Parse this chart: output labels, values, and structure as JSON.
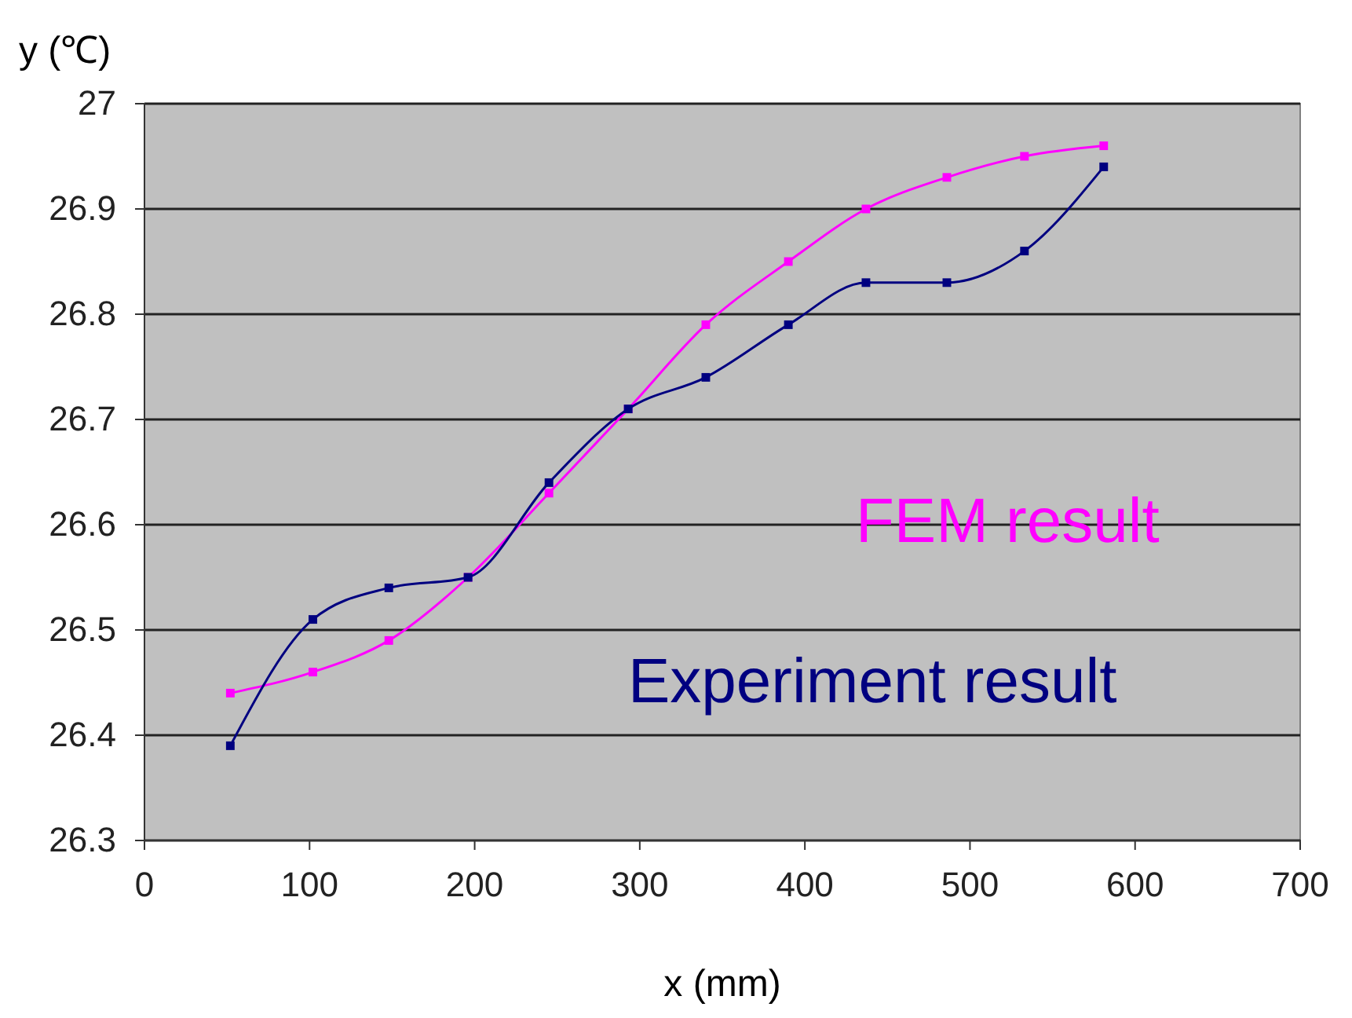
{
  "chart_data": {
    "type": "line",
    "xlabel": "x (mm)",
    "ylabel": "y (℃)",
    "xlim": [
      0,
      700
    ],
    "xticks": [
      0,
      100,
      200,
      300,
      400,
      500,
      600,
      700
    ],
    "ylim": [
      26.3,
      27
    ],
    "yticks": [
      26.3,
      26.4,
      26.5,
      26.6,
      26.7,
      26.8,
      26.9,
      27
    ],
    "grid": "y",
    "legend": false,
    "marker": "square",
    "series": [
      {
        "name": "FEM result",
        "color": "#ff00ff",
        "x": [
          52,
          102,
          148,
          196,
          245,
          293,
          340,
          390,
          437,
          486,
          533,
          581
        ],
        "values": [
          26.44,
          26.46,
          26.49,
          26.55,
          26.63,
          26.71,
          26.79,
          26.85,
          26.9,
          26.93,
          26.95,
          26.96
        ]
      },
      {
        "name": "Experiment result",
        "color": "#000080",
        "x": [
          52,
          102,
          148,
          196,
          245,
          293,
          340,
          390,
          437,
          486,
          533,
          581
        ],
        "values": [
          26.39,
          26.51,
          26.54,
          26.55,
          26.64,
          26.71,
          26.74,
          26.79,
          26.83,
          26.83,
          26.86,
          26.94
        ]
      }
    ]
  }
}
